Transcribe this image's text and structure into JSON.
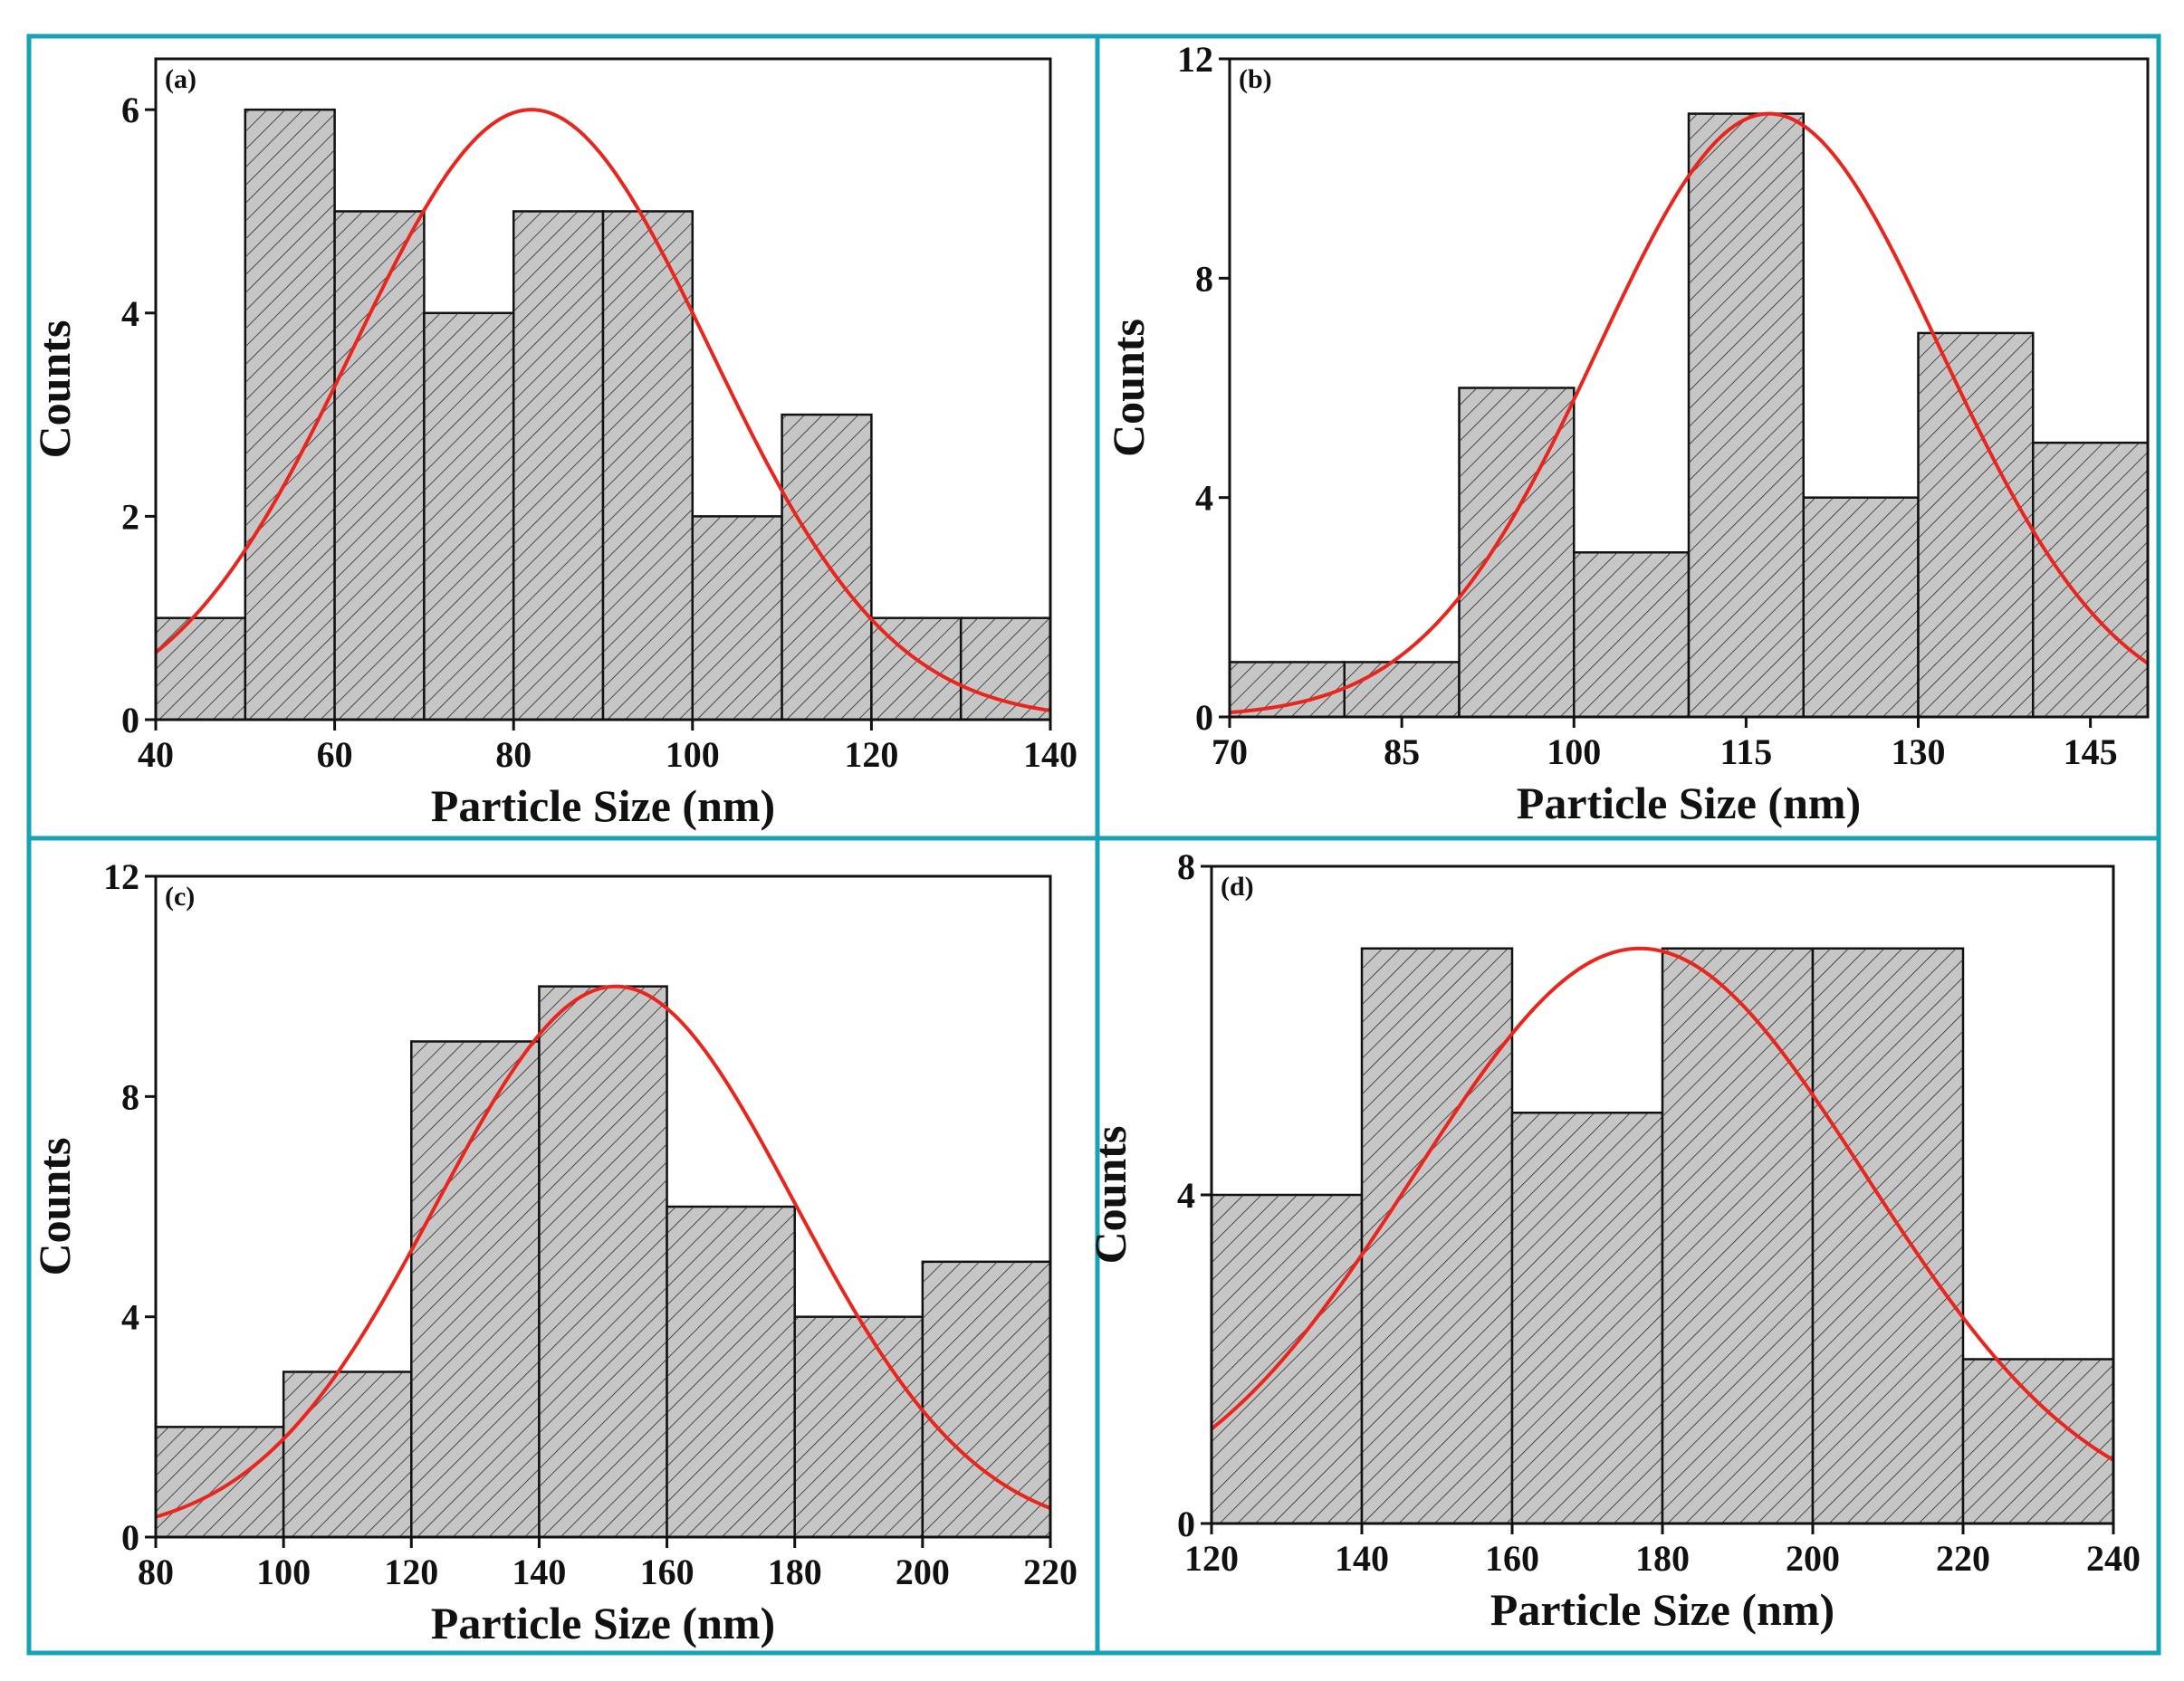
{
  "colors": {
    "panel_border": "#17a2b8",
    "bar_fill": "#c6c6c6",
    "fit_curve": "#e8261d",
    "axis": "#111111"
  },
  "chart_data": [
    {
      "type": "bar",
      "panel_label": "(a)",
      "xlabel": "Particle Size (nm)",
      "ylabel": "Counts",
      "xlim": [
        40,
        140
      ],
      "ylim": [
        0,
        6.5
      ],
      "xticks": [
        40,
        60,
        80,
        100,
        120,
        140
      ],
      "yticks": [
        0,
        2,
        4,
        6
      ],
      "bin_edges": [
        40,
        50,
        60,
        70,
        80,
        90,
        100,
        110,
        120,
        130,
        140
      ],
      "values": [
        1,
        6,
        5,
        4,
        5,
        5,
        2,
        3,
        1,
        1
      ],
      "fit": {
        "type": "gaussian",
        "center": 82,
        "sigma": 20,
        "amplitude": 6.0
      }
    },
    {
      "type": "bar",
      "panel_label": "(b)",
      "xlabel": "Particle Size (nm)",
      "ylabel": "Counts",
      "xlim": [
        70,
        150
      ],
      "ylim": [
        0,
        12
      ],
      "xticks": [
        70,
        85,
        100,
        115,
        130,
        145
      ],
      "yticks": [
        0,
        4,
        8,
        12
      ],
      "bin_edges": [
        70,
        80,
        90,
        100,
        110,
        120,
        130,
        140,
        150
      ],
      "values": [
        1,
        1,
        6,
        3,
        11,
        4,
        7,
        5
      ],
      "fit": {
        "type": "gaussian",
        "center": 117,
        "sigma": 15,
        "amplitude": 11.0
      }
    },
    {
      "type": "bar",
      "panel_label": "(c)",
      "xlabel": "Particle Size (nm)",
      "ylabel": "Counts",
      "xlim": [
        80,
        220
      ],
      "ylim": [
        0,
        12
      ],
      "xticks": [
        80,
        100,
        120,
        140,
        160,
        180,
        200,
        220
      ],
      "yticks": [
        0,
        4,
        8,
        12
      ],
      "bin_edges": [
        80,
        100,
        120,
        140,
        160,
        180,
        200,
        220
      ],
      "values": [
        2,
        3,
        9,
        10,
        6,
        4,
        5
      ],
      "fit": {
        "type": "gaussian",
        "center": 152,
        "sigma": 28,
        "amplitude": 10.0
      }
    },
    {
      "type": "bar",
      "panel_label": "(d)",
      "xlabel": "Particle Size (nm)",
      "ylabel": "Counts",
      "xlim": [
        120,
        240
      ],
      "ylim": [
        0,
        8
      ],
      "xticks": [
        120,
        140,
        160,
        180,
        200,
        220,
        240
      ],
      "yticks": [
        0,
        4,
        8
      ],
      "bin_edges": [
        120,
        140,
        160,
        180,
        200,
        220,
        240
      ],
      "values": [
        4,
        7,
        5,
        7,
        7,
        2
      ],
      "fit": {
        "type": "gaussian",
        "center": 177,
        "sigma": 30,
        "amplitude": 7.0
      }
    }
  ]
}
